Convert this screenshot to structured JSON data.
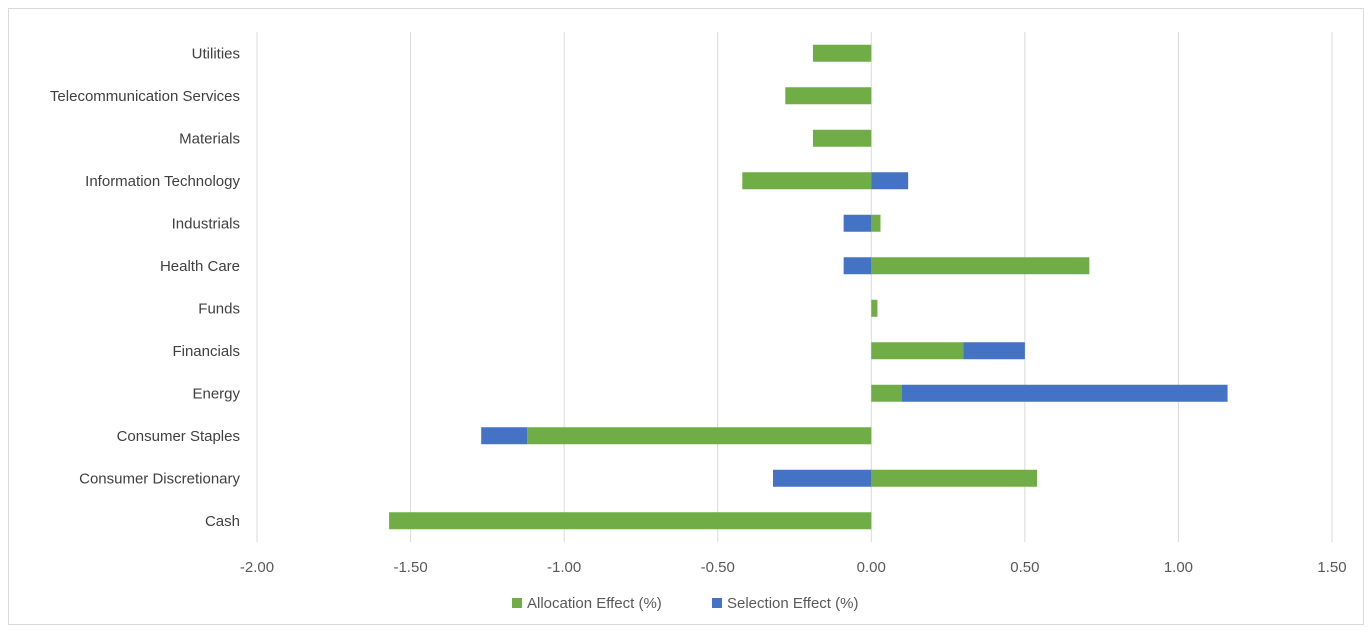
{
  "chart_data": {
    "type": "bar",
    "orientation": "horizontal",
    "stacked": true,
    "title": "",
    "xlabel": "",
    "ylabel": "",
    "categories": [
      "Cash",
      "Consumer Discretionary",
      "Consumer Staples",
      "Energy",
      "Financials",
      "Funds",
      "Health Care",
      "Industrials",
      "Information Technology",
      "Materials",
      "Telecommunication Services",
      "Utilities"
    ],
    "series": [
      {
        "name": "Allocation Effect (%)",
        "color": "#70ad47",
        "values": [
          -1.57,
          0.54,
          -1.12,
          0.1,
          0.3,
          0.02,
          0.71,
          0.03,
          -0.42,
          -0.19,
          -0.28,
          -0.19
        ]
      },
      {
        "name": "Selection Effect (%)",
        "color": "#4472c4",
        "values": [
          0,
          -0.32,
          -0.15,
          1.06,
          0.2,
          0,
          -0.09,
          -0.09,
          0.12,
          0,
          0,
          0
        ]
      }
    ],
    "xlim": [
      -2.0,
      1.5
    ],
    "x_ticks": [
      "-2.00",
      "-1.50",
      "-1.00",
      "-0.50",
      "0.00",
      "0.50",
      "1.00",
      "1.50"
    ],
    "grid": "vertical",
    "legend": "bottom-center"
  }
}
